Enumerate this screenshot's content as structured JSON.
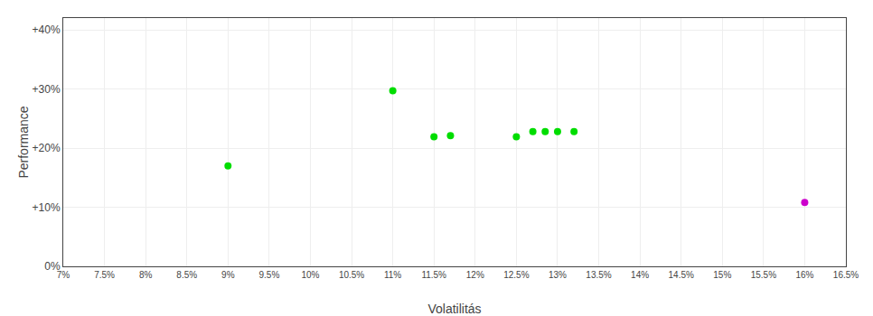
{
  "chart_data": {
    "type": "scatter",
    "xlabel": "Volatilitás",
    "ylabel": "Performance",
    "xlim": [
      0.07,
      0.165
    ],
    "ylim": [
      0.0,
      0.42
    ],
    "xticks": [
      {
        "value": 0.07,
        "label": "7%"
      },
      {
        "value": 0.075,
        "label": "7.5%"
      },
      {
        "value": 0.08,
        "label": "8%"
      },
      {
        "value": 0.085,
        "label": "8.5%"
      },
      {
        "value": 0.09,
        "label": "9%"
      },
      {
        "value": 0.095,
        "label": "9.5%"
      },
      {
        "value": 0.1,
        "label": "10%"
      },
      {
        "value": 0.105,
        "label": "10.5%"
      },
      {
        "value": 0.11,
        "label": "11%"
      },
      {
        "value": 0.115,
        "label": "11.5%"
      },
      {
        "value": 0.12,
        "label": "12%"
      },
      {
        "value": 0.125,
        "label": "12.5%"
      },
      {
        "value": 0.13,
        "label": "13%"
      },
      {
        "value": 0.135,
        "label": "13.5%"
      },
      {
        "value": 0.14,
        "label": "14%"
      },
      {
        "value": 0.145,
        "label": "14.5%"
      },
      {
        "value": 0.15,
        "label": "15%"
      },
      {
        "value": 0.155,
        "label": "15.5%"
      },
      {
        "value": 0.16,
        "label": "16%"
      },
      {
        "value": 0.165,
        "label": "16.5%"
      }
    ],
    "yticks": [
      {
        "value": 0.0,
        "label": "0%"
      },
      {
        "value": 0.1,
        "label": "+10%"
      },
      {
        "value": 0.2,
        "label": "+20%"
      },
      {
        "value": 0.3,
        "label": "+30%"
      },
      {
        "value": 0.4,
        "label": "+40%"
      }
    ],
    "grid": true,
    "series": [
      {
        "color": "#00dd00",
        "x": [
          0.09,
          0.11,
          0.115,
          0.117,
          0.125,
          0.127,
          0.1285,
          0.13,
          0.132
        ],
        "values": [
          0.17,
          0.297,
          0.219,
          0.221,
          0.219,
          0.228,
          0.228,
          0.228,
          0.228
        ]
      },
      {
        "color": "#cc00cc",
        "x": [
          0.16
        ],
        "values": [
          0.108
        ]
      }
    ]
  }
}
